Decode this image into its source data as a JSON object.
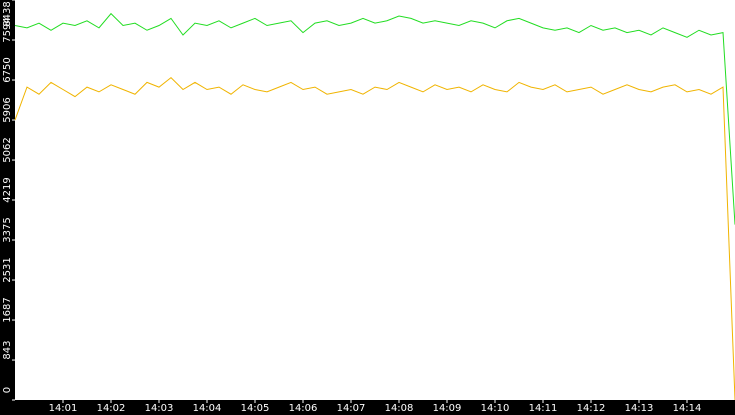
{
  "chart_data": {
    "type": "line",
    "x": [
      840,
      840.25,
      840.5,
      840.75,
      841,
      841.25,
      841.5,
      841.75,
      842,
      842.25,
      842.5,
      842.75,
      843,
      843.25,
      843.5,
      843.75,
      844,
      844.25,
      844.5,
      844.75,
      845,
      845.25,
      845.5,
      845.75,
      846,
      846.25,
      846.5,
      846.75,
      847,
      847.25,
      847.5,
      847.75,
      848,
      848.25,
      848.5,
      848.75,
      849,
      849.25,
      849.5,
      849.75,
      850,
      850.25,
      850.5,
      850.75,
      851,
      851.25,
      851.5,
      851.75,
      852,
      852.25,
      852.5,
      852.75,
      853,
      853.25,
      853.5,
      853.75,
      854,
      854.25,
      854.5,
      854.75,
      855
    ],
    "series": [
      {
        "name": "green",
        "color": "#22dd22",
        "values": [
          7900,
          7850,
          7950,
          7800,
          7950,
          7900,
          8000,
          7850,
          8150,
          7900,
          7950,
          7800,
          7900,
          8050,
          7700,
          7950,
          7900,
          8000,
          7850,
          7950,
          8050,
          7900,
          7950,
          8000,
          7750,
          7950,
          8000,
          7900,
          7950,
          8050,
          7950,
          8000,
          8100,
          8050,
          7950,
          8000,
          7950,
          7900,
          8000,
          7950,
          7850,
          8000,
          8050,
          7950,
          7850,
          7800,
          7850,
          7750,
          7900,
          7800,
          7850,
          7750,
          7800,
          7700,
          7850,
          7750,
          7650,
          7800,
          7700,
          7750,
          3700
        ]
      },
      {
        "name": "yellow",
        "color": "#f0b400",
        "values": [
          5906,
          6600,
          6450,
          6700,
          6550,
          6400,
          6600,
          6500,
          6650,
          6550,
          6450,
          6700,
          6600,
          6800,
          6550,
          6700,
          6550,
          6600,
          6450,
          6650,
          6550,
          6500,
          6600,
          6700,
          6550,
          6600,
          6450,
          6500,
          6550,
          6450,
          6600,
          6550,
          6700,
          6600,
          6500,
          6650,
          6550,
          6600,
          6500,
          6650,
          6550,
          6500,
          6700,
          6600,
          6550,
          6650,
          6500,
          6550,
          6600,
          6450,
          6550,
          6650,
          6550,
          6500,
          6600,
          6650,
          6500,
          6550,
          6450,
          6600,
          0
        ]
      }
    ],
    "xlim": [
      840,
      855
    ],
    "xticks": [
      {
        "value": 841,
        "label": "14:01"
      },
      {
        "value": 842,
        "label": "14:02"
      },
      {
        "value": 843,
        "label": "14:03"
      },
      {
        "value": 844,
        "label": "14:04"
      },
      {
        "value": 845,
        "label": "14:05"
      },
      {
        "value": 846,
        "label": "14:06"
      },
      {
        "value": 847,
        "label": "14:07"
      },
      {
        "value": 848,
        "label": "14:08"
      },
      {
        "value": 849,
        "label": "14:09"
      },
      {
        "value": 850,
        "label": "14:10"
      },
      {
        "value": 851,
        "label": "14:11"
      },
      {
        "value": 852,
        "label": "14:12"
      },
      {
        "value": 853,
        "label": "14:13"
      },
      {
        "value": 854,
        "label": "14:14"
      }
    ],
    "ylim": [
      0,
      8438
    ],
    "yticks": [
      0,
      843,
      1687,
      2531,
      3375,
      4219,
      5062,
      5906,
      6750,
      7594,
      8438
    ]
  }
}
